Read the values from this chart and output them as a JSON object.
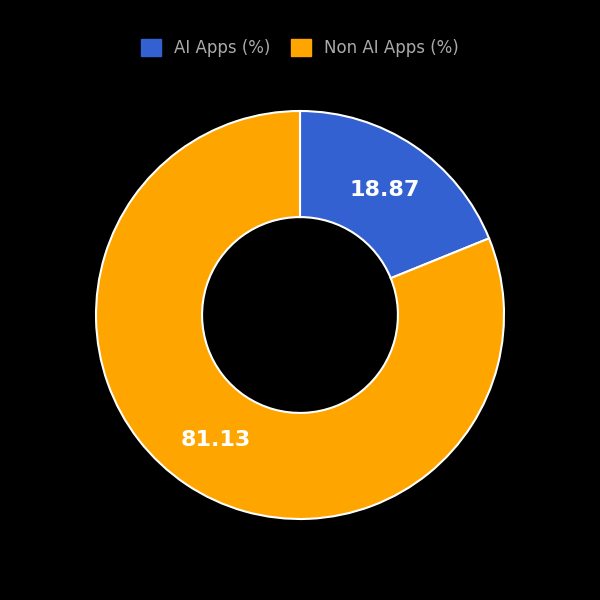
{
  "labels": [
    "AI Apps (%)",
    "Non AI Apps (%)"
  ],
  "values": [
    18.87,
    81.13
  ],
  "colors": [
    "#3461D1",
    "#FFA500"
  ],
  "autopct_values": [
    "18.87",
    "81.13"
  ],
  "background_color": "#000000",
  "text_color": "#ffffff",
  "donut_width": 0.52,
  "figsize": [
    6.0,
    6.0
  ],
  "dpi": 100,
  "legend_text_color": "#aaaaaa",
  "label_fontsize": 16,
  "legend_fontsize": 12
}
